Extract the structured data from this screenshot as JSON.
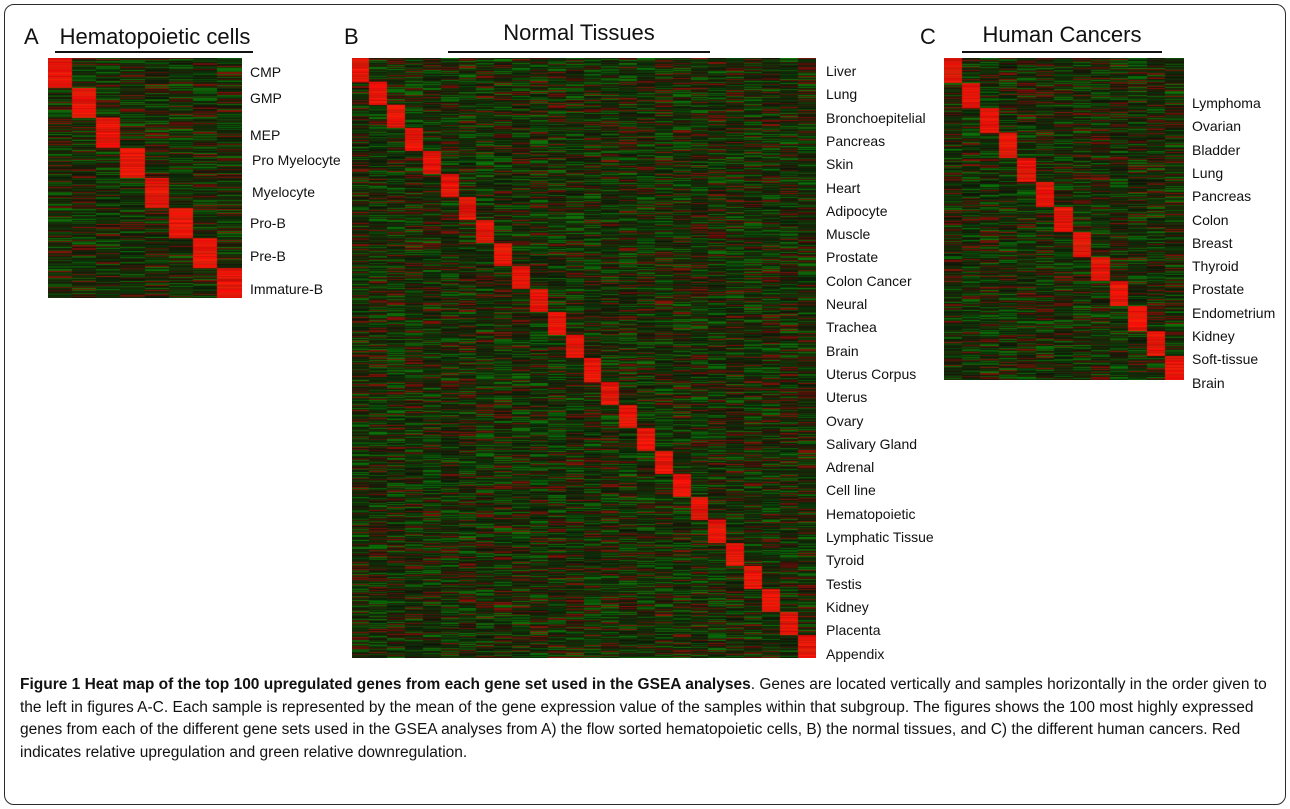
{
  "panels": [
    {
      "id": "A",
      "letter": "A",
      "title": "Hematopoietic cells",
      "labels": [
        "CMP",
        "GMP",
        "MEP",
        "Pro Myelocyte",
        "Myelocyte",
        "Pro-B",
        "Pre-B",
        "Immature-B"
      ]
    },
    {
      "id": "B",
      "letter": "B",
      "title": "Normal Tissues",
      "labels": [
        "Liver",
        "Lung",
        "Bronchoepitelial",
        "Pancreas",
        "Skin",
        "Heart",
        "Adipocyte",
        "Muscle",
        "Prostate",
        "Colon Cancer",
        "Neural",
        "Trachea",
        "Brain",
        "Uterus Corpus",
        "Uterus",
        "Ovary",
        "Salivary Gland",
        "Adrenal",
        "Cell line",
        "Hematopoietic",
        "Lymphatic Tissue",
        "Tyroid",
        "Testis",
        "Kidney",
        "Placenta",
        "Appendix"
      ]
    },
    {
      "id": "C",
      "letter": "C",
      "title": "Human Cancers",
      "labels": [
        "Lymphoma",
        "Ovarian",
        "Bladder",
        "Lung",
        "Pancreas",
        "Colon",
        "Breast",
        "Thyroid",
        "Prostate",
        "Endometrium",
        "Kidney",
        "Soft-tissue",
        "Brain"
      ]
    }
  ],
  "caption": {
    "title": "Figure 1 Heat map of the top 100 upregulated genes from each gene set used in the GSEA analyses",
    "body": ". Genes are located vertically and samples horizontally in the order given to the left in figures A-C. Each sample is represented by the mean of the gene expression value of the samples within that subgroup. The figures shows the 100 most highly expressed genes from each of the different gene sets used in the GSEA analyses from A) the flow sorted hematopoietic cells, B) the normal tissues, and C) the different human cancers. Red indicates relative upregulation and green relative downregulation."
  },
  "colors": {
    "up": "#ff1a1a",
    "down": "#1f9a1f",
    "neutral": "#0a0a0a"
  }
}
